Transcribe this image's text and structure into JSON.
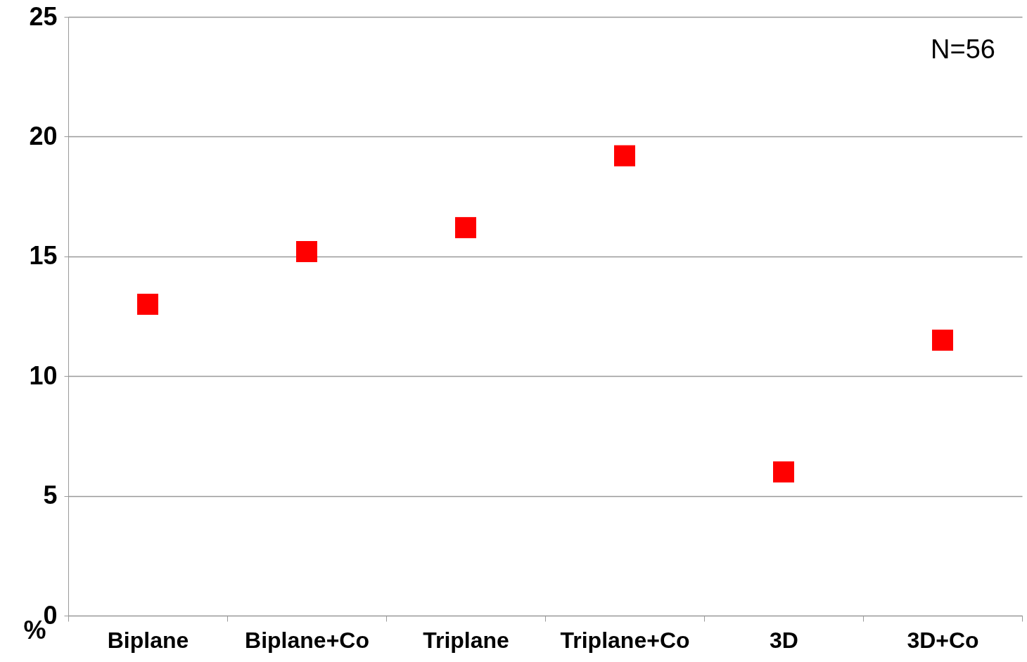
{
  "chart_data": {
    "type": "scatter",
    "categories": [
      "Biplane",
      "Biplane+Co",
      "Triplane",
      "Triplane+Co",
      "3D",
      "3D+Co"
    ],
    "values": [
      13.0,
      15.2,
      16.2,
      19.2,
      6.0,
      11.5
    ],
    "color": "#ff0000",
    "marker": "square",
    "ylim": [
      0,
      25
    ],
    "yticks": [
      0,
      5,
      10,
      15,
      20,
      25
    ],
    "ylabel": "%",
    "grid": "y",
    "annotations": [
      "N=56"
    ]
  }
}
